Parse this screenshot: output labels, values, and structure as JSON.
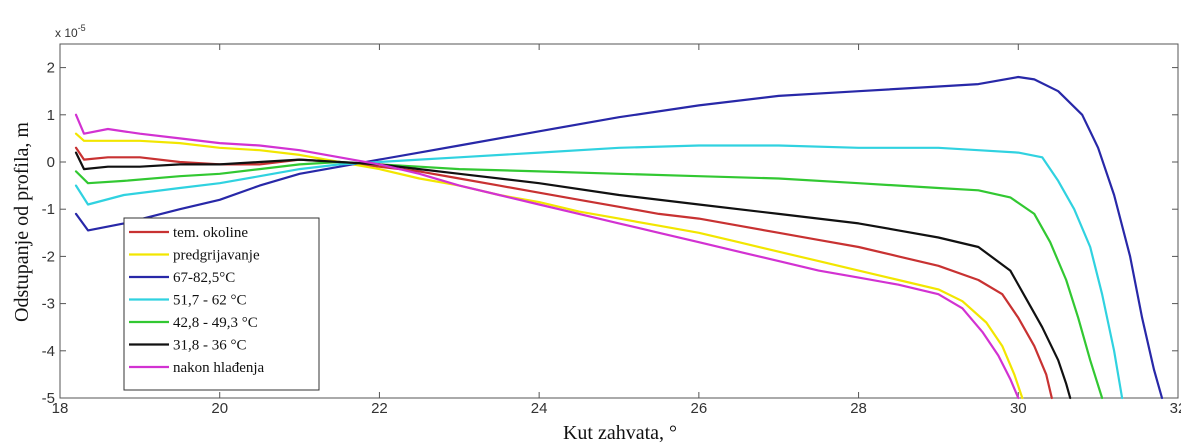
{
  "chart_data": {
    "type": "line",
    "xlabel": "Kut zahvata, °",
    "ylabel": "Odstupanje od profila, m",
    "y_multiplier": "x 10",
    "y_multiplier_exp": "-5",
    "xlim": [
      18,
      32
    ],
    "ylim": [
      -5,
      2.5
    ],
    "xticks": [
      "18",
      "20",
      "22",
      "24",
      "26",
      "28",
      "30",
      "32"
    ],
    "yticks": [
      "2",
      "1",
      "0",
      "-1",
      "-2",
      "-3",
      "-4",
      "-5"
    ],
    "legend_position": "bottom-left",
    "grid": false,
    "series": [
      {
        "name": "tem. okoline",
        "color": "#c83232",
        "x": [
          18.2,
          18.3,
          18.6,
          19,
          19.5,
          20,
          20.5,
          21,
          21.5,
          22,
          22.5,
          23,
          23.5,
          24,
          24.5,
          25,
          25.5,
          26,
          26.5,
          27,
          27.5,
          28,
          28.5,
          29,
          29.5,
          29.8,
          30.0,
          30.2,
          30.35,
          30.42
        ],
        "y": [
          0.3,
          0.05,
          0.1,
          0.1,
          0.0,
          -0.05,
          -0.05,
          0.05,
          0.0,
          -0.1,
          -0.2,
          -0.35,
          -0.5,
          -0.65,
          -0.8,
          -0.95,
          -1.1,
          -1.2,
          -1.35,
          -1.5,
          -1.65,
          -1.8,
          -2.0,
          -2.2,
          -2.5,
          -2.8,
          -3.3,
          -3.9,
          -4.5,
          -5.0
        ]
      },
      {
        "name": "predgrijavanje",
        "color": "#f2e600",
        "x": [
          18.2,
          18.3,
          18.6,
          19,
          19.5,
          20,
          20.5,
          21,
          21.5,
          22,
          22.5,
          23,
          23.5,
          24,
          24.5,
          25,
          25.5,
          26,
          26.5,
          27,
          27.5,
          28,
          28.5,
          29,
          29.3,
          29.6,
          29.8,
          29.95,
          30.05
        ],
        "y": [
          0.6,
          0.45,
          0.45,
          0.45,
          0.4,
          0.3,
          0.25,
          0.15,
          0.0,
          -0.15,
          -0.35,
          -0.5,
          -0.7,
          -0.85,
          -1.05,
          -1.2,
          -1.35,
          -1.5,
          -1.7,
          -1.9,
          -2.1,
          -2.3,
          -2.5,
          -2.7,
          -2.95,
          -3.4,
          -3.9,
          -4.5,
          -5.0
        ]
      },
      {
        "name": "67-82,5°C",
        "color": "#2828a8",
        "x": [
          18.2,
          18.35,
          18.8,
          19.5,
          20,
          20.5,
          21,
          21.5,
          22,
          22.5,
          23,
          24,
          25,
          26,
          27,
          28,
          29,
          29.5,
          30,
          30.2,
          30.5,
          30.8,
          31.0,
          31.2,
          31.4,
          31.55,
          31.7,
          31.8
        ],
        "y": [
          -1.1,
          -1.45,
          -1.3,
          -1.0,
          -0.8,
          -0.5,
          -0.25,
          -0.1,
          0.05,
          0.2,
          0.35,
          0.65,
          0.95,
          1.2,
          1.4,
          1.5,
          1.6,
          1.65,
          1.8,
          1.75,
          1.5,
          1.0,
          0.3,
          -0.7,
          -2.0,
          -3.3,
          -4.4,
          -5.0
        ]
      },
      {
        "name": "51,7 - 62 °C",
        "color": "#30d2e0",
        "x": [
          18.2,
          18.35,
          18.8,
          19.5,
          20,
          20.5,
          21,
          21.5,
          22,
          22.5,
          23,
          24,
          25,
          26,
          27,
          28,
          29,
          29.5,
          30,
          30.3,
          30.5,
          30.7,
          30.9,
          31.05,
          31.2,
          31.3
        ],
        "y": [
          -0.5,
          -0.9,
          -0.7,
          -0.55,
          -0.45,
          -0.3,
          -0.15,
          -0.05,
          0.0,
          0.05,
          0.1,
          0.2,
          0.3,
          0.35,
          0.35,
          0.3,
          0.3,
          0.25,
          0.2,
          0.1,
          -0.4,
          -1.0,
          -1.8,
          -2.8,
          -4.0,
          -5.0
        ]
      },
      {
        "name": "42,8 - 49,3 °C",
        "color": "#32c832",
        "x": [
          18.2,
          18.35,
          18.8,
          19.5,
          20,
          20.5,
          21,
          21.5,
          22,
          22.5,
          23,
          24,
          25,
          26,
          27,
          28,
          29,
          29.5,
          29.9,
          30.2,
          30.4,
          30.6,
          30.75,
          30.9,
          31.05
        ],
        "y": [
          -0.2,
          -0.45,
          -0.4,
          -0.3,
          -0.25,
          -0.15,
          -0.05,
          0.0,
          -0.05,
          -0.1,
          -0.15,
          -0.2,
          -0.25,
          -0.3,
          -0.35,
          -0.45,
          -0.55,
          -0.6,
          -0.75,
          -1.1,
          -1.7,
          -2.5,
          -3.3,
          -4.2,
          -5.0
        ]
      },
      {
        "name": "31,8 - 36 °C",
        "color": "#111111",
        "x": [
          18.2,
          18.3,
          18.6,
          19,
          19.5,
          20,
          20.5,
          21,
          21.5,
          22,
          22.5,
          23,
          24,
          25,
          26,
          27,
          28,
          28.5,
          29,
          29.5,
          29.9,
          30.1,
          30.3,
          30.5,
          30.6,
          30.65
        ],
        "y": [
          0.2,
          -0.15,
          -0.1,
          -0.1,
          -0.05,
          -0.05,
          0.0,
          0.05,
          0.0,
          -0.05,
          -0.15,
          -0.25,
          -0.45,
          -0.7,
          -0.9,
          -1.1,
          -1.3,
          -1.45,
          -1.6,
          -1.8,
          -2.3,
          -2.9,
          -3.5,
          -4.2,
          -4.7,
          -5.0
        ]
      },
      {
        "name": "nakon hlađenja",
        "color": "#d232d2",
        "x": [
          18.2,
          18.3,
          18.6,
          19,
          19.5,
          20,
          20.5,
          21,
          21.5,
          22,
          22.5,
          23,
          23.5,
          24,
          24.5,
          25,
          25.5,
          26,
          26.5,
          27,
          27.5,
          28,
          28.5,
          29,
          29.3,
          29.55,
          29.75,
          29.9,
          30.0
        ],
        "y": [
          1.0,
          0.6,
          0.7,
          0.6,
          0.5,
          0.4,
          0.35,
          0.25,
          0.1,
          -0.05,
          -0.25,
          -0.5,
          -0.7,
          -0.9,
          -1.1,
          -1.3,
          -1.5,
          -1.7,
          -1.9,
          -2.1,
          -2.3,
          -2.45,
          -2.6,
          -2.8,
          -3.1,
          -3.6,
          -4.1,
          -4.6,
          -5.0
        ]
      }
    ]
  }
}
